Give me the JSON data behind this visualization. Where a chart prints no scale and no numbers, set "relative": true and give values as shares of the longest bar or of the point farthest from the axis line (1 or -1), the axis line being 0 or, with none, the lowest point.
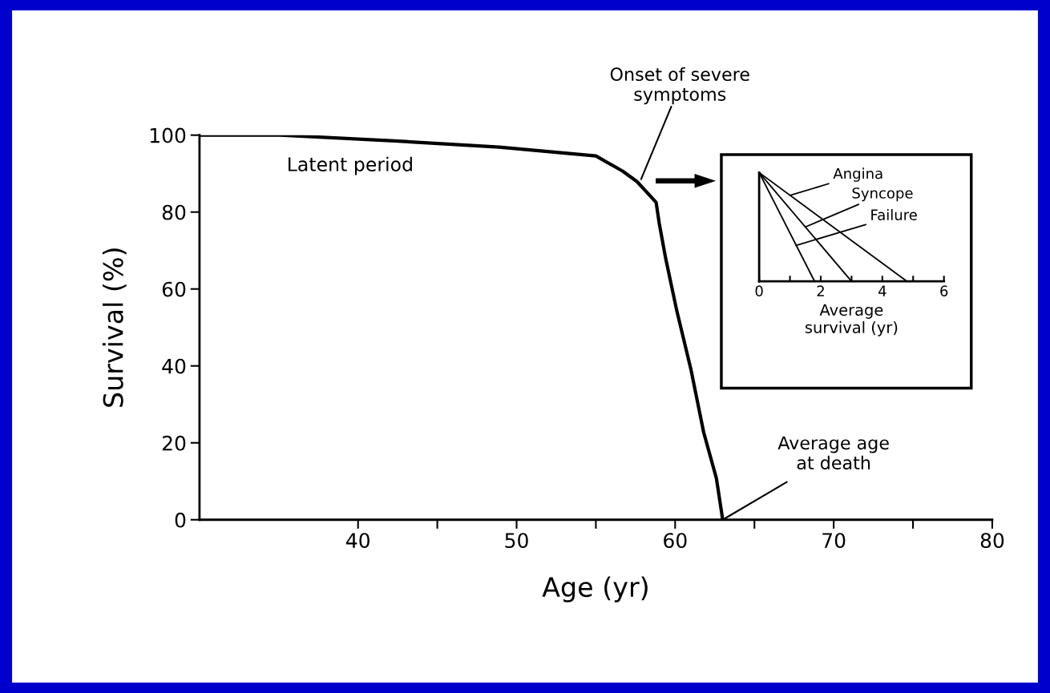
{
  "chart_data": [
    {
      "type": "line",
      "xlabel": "Age (yr)",
      "ylabel": "Survival (%)",
      "xlim": [
        30,
        80
      ],
      "ylim": [
        0,
        100
      ],
      "xticks": [
        40,
        {
          "value": 45,
          "label": null
        },
        50,
        {
          "value": 55,
          "label": null
        },
        60,
        {
          "value": 65,
          "label": null
        },
        70,
        {
          "value": 75,
          "label": null
        },
        80
      ],
      "yticks": [
        0,
        20,
        40,
        60,
        80,
        100
      ],
      "series": [
        {
          "color": "#000000",
          "x": [
            30,
            35.1,
            42.3,
            48.9,
            55.0,
            56.7,
            57.6,
            58.8,
            59.0,
            59.4,
            60.1,
            61.0,
            61.8,
            62.6,
            63.0
          ],
          "values": [
            100,
            100,
            98.5,
            96.9,
            94.6,
            90.6,
            87.9,
            82.5,
            77,
            68,
            54.4,
            39,
            22.7,
            10.8,
            0
          ]
        }
      ],
      "annotations": [
        "Latent period",
        {
          "text": "Onset of severe\nsymptoms",
          "x": 57.8,
          "y": 88
        },
        {
          "text": "Average age\nat death",
          "x": 63,
          "y": 0
        }
      ],
      "marker": "none",
      "line_style": "solid",
      "grid": false
    },
    {
      "type": "line",
      "xlabel": "Average\nsurvival (yr)",
      "relative": true,
      "xlim": [
        0,
        6
      ],
      "xticks": [
        0,
        {
          "value": 1,
          "label": null
        },
        2,
        {
          "value": 3,
          "label": null
        },
        4,
        {
          "value": 5,
          "label": null
        },
        6
      ],
      "tick_labels": "x",
      "legend": "top right",
      "series": [
        {
          "name": "Angina",
          "color": "#000000",
          "x": [
            0,
            4.8
          ],
          "values": [
            1,
            0
          ]
        },
        {
          "name": "Syncope",
          "color": "#000000",
          "x": [
            0,
            3
          ],
          "values": [
            1,
            0
          ]
        },
        {
          "name": "Failure",
          "color": "#000000",
          "x": [
            0,
            1.8
          ],
          "values": [
            1,
            0
          ]
        }
      ],
      "marker": "none",
      "line_style": "solid",
      "grid": false
    }
  ]
}
